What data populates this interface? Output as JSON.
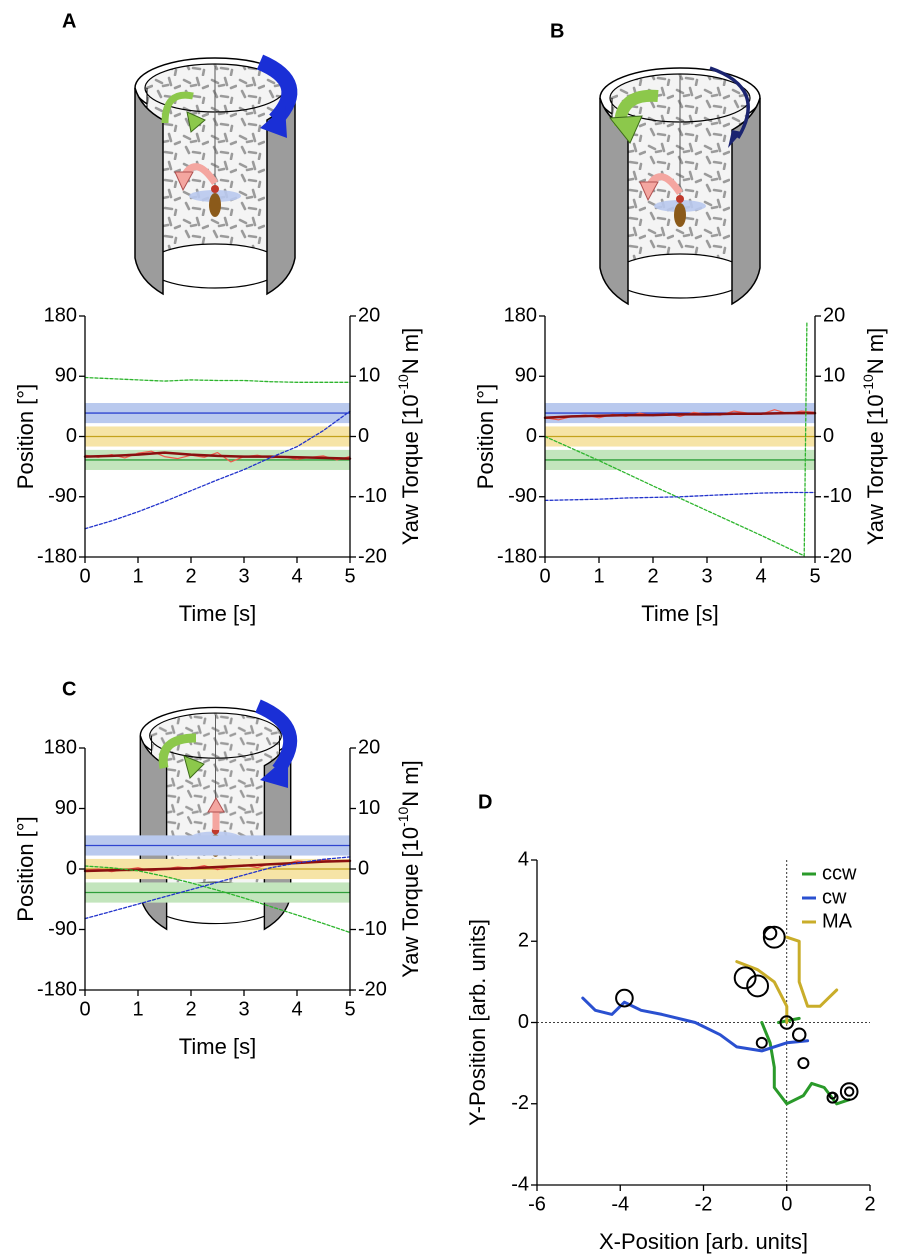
{
  "chart_data": [
    {
      "type": "line",
      "label": "A",
      "xlabel": "Time [s]",
      "ylabel": "Position [°]",
      "y2label": [
        "Yaw Torque [10",
        "-10",
        "N m]"
      ],
      "xlim": [
        0,
        5
      ],
      "xticks": [
        0,
        1,
        2,
        3,
        4,
        5
      ],
      "ylim": [
        -180,
        180
      ],
      "yticks": [
        -180,
        -90,
        0,
        90,
        180
      ],
      "y2lim": [
        -20,
        20
      ],
      "y2ticks": [
        -20,
        -10,
        0,
        10,
        20
      ],
      "bands": [
        {
          "color": "#b9c9ee",
          "line_color": "#2f45d0",
          "from": 20,
          "to": 50,
          "line": 35
        },
        {
          "color": "#f6e4a6",
          "line_color": "#c4a21c",
          "from": -15,
          "to": 15,
          "line": 0
        },
        {
          "color": "#c3e5bd",
          "line_color": "#2e9e3a",
          "from": -50,
          "to": -20,
          "line": -35
        }
      ],
      "series": [
        {
          "color": "#f0594c",
          "width": 1.2,
          "x": [
            0,
            0.25,
            0.5,
            0.75,
            1,
            1.25,
            1.5,
            1.75,
            2,
            2.25,
            2.5,
            2.75,
            3,
            3.25,
            3.5,
            3.75,
            4,
            4.25,
            4.5,
            4.75,
            5
          ],
          "values": [
            -28,
            -31,
            -27,
            -32,
            -25,
            -22,
            -30,
            -33,
            -28,
            -31,
            -24,
            -38,
            -30,
            -28,
            -32,
            -30,
            -34,
            -31,
            -29,
            -35,
            -30
          ]
        },
        {
          "color": "#8a1010",
          "width": 2.5,
          "x": [
            0,
            0.5,
            1,
            1.5,
            2,
            2.5,
            3,
            3.5,
            4,
            4.5,
            5
          ],
          "values": [
            -30,
            -29,
            -27,
            -24,
            -27,
            -29,
            -30,
            -30,
            -31,
            -32,
            -33
          ]
        },
        {
          "color": "#2db52d",
          "width": 1.3,
          "dashed": true,
          "axis": "y2",
          "x": [
            0,
            0.5,
            1,
            1.5,
            2,
            2.5,
            3,
            3.5,
            4,
            4.5,
            5
          ],
          "values": [
            9.8,
            9.6,
            9.4,
            9.2,
            9.4,
            9.3,
            9.3,
            9.1,
            9.0,
            9.0,
            9.0
          ]
        },
        {
          "color": "#2233cc",
          "width": 1.3,
          "dashed": true,
          "axis": "y2",
          "x": [
            0,
            0.5,
            1,
            1.5,
            2,
            2.5,
            3,
            3.5,
            4,
            4.5,
            5
          ],
          "values": [
            -15.3,
            -14,
            -12.5,
            -10.8,
            -9,
            -7.2,
            -5.5,
            -3.5,
            -1.7,
            1,
            4.2
          ]
        }
      ]
    },
    {
      "type": "line",
      "label": "B",
      "xlabel": "Time [s]",
      "ylabel": "Position [°]",
      "y2label": [
        "Yaw Torque [10",
        "-10",
        "N m]"
      ],
      "xlim": [
        0,
        5
      ],
      "xticks": [
        0,
        1,
        2,
        3,
        4,
        5
      ],
      "ylim": [
        -180,
        180
      ],
      "yticks": [
        -180,
        -90,
        0,
        90,
        180
      ],
      "y2lim": [
        -20,
        20
      ],
      "y2ticks": [
        -20,
        -10,
        0,
        10,
        20
      ],
      "bands": [
        {
          "color": "#b9c9ee",
          "line_color": "#2f45d0",
          "from": 20,
          "to": 50,
          "line": 35
        },
        {
          "color": "#f6e4a6",
          "line_color": "#c4a21c",
          "from": -15,
          "to": 15,
          "line": 0
        },
        {
          "color": "#c3e5bd",
          "line_color": "#2e9e3a",
          "from": -50,
          "to": -20,
          "line": -35
        }
      ],
      "series": [
        {
          "color": "#f0594c",
          "width": 1.2,
          "x": [
            0,
            0.25,
            0.5,
            0.75,
            1,
            1.25,
            1.5,
            1.75,
            2,
            2.25,
            2.5,
            2.75,
            3,
            3.25,
            3.5,
            3.75,
            4,
            4.25,
            4.5,
            4.75,
            5
          ],
          "values": [
            28,
            25,
            30,
            32,
            28,
            33,
            30,
            35,
            31,
            34,
            30,
            36,
            33,
            32,
            38,
            35,
            33,
            40,
            34,
            38,
            36
          ]
        },
        {
          "color": "#8a1010",
          "width": 2.5,
          "x": [
            0,
            0.5,
            1,
            1.5,
            2,
            2.5,
            3,
            3.5,
            4,
            4.5,
            5
          ],
          "values": [
            28,
            30,
            31,
            32,
            32,
            33,
            33,
            34,
            34,
            35,
            35
          ]
        },
        {
          "color": "#2db52d",
          "width": 1.3,
          "dashed": true,
          "axis": "y2",
          "x": [
            0,
            1,
            2,
            3,
            4,
            4.8,
            4.85
          ],
          "values": [
            0,
            -4,
            -8.2,
            -12.3,
            -16.4,
            -19.8,
            19
          ]
        },
        {
          "color": "#2233cc",
          "width": 1.3,
          "dashed": true,
          "axis": "y2",
          "x": [
            0,
            0.5,
            1,
            1.5,
            2,
            2.5,
            3,
            3.5,
            4,
            4.5,
            5
          ],
          "values": [
            -10.6,
            -10.5,
            -10.4,
            -10.2,
            -10.1,
            -10,
            -9.8,
            -9.6,
            -9.4,
            -9.3,
            -9.3
          ]
        }
      ]
    },
    {
      "type": "line",
      "label": "C",
      "xlabel": "Time [s]",
      "ylabel": "Position [°]",
      "y2label": [
        "Yaw Torque [10",
        "-10",
        "N m]"
      ],
      "xlim": [
        0,
        5
      ],
      "xticks": [
        0,
        1,
        2,
        3,
        4,
        5
      ],
      "ylim": [
        -180,
        180
      ],
      "yticks": [
        -180,
        -90,
        0,
        90,
        180
      ],
      "y2lim": [
        -20,
        20
      ],
      "y2ticks": [
        -20,
        -10,
        0,
        10,
        20
      ],
      "bands": [
        {
          "color": "#b9c9ee",
          "line_color": "#2f45d0",
          "from": 20,
          "to": 50,
          "line": 35
        },
        {
          "color": "#f6e4a6",
          "line_color": "#c4a21c",
          "from": -15,
          "to": 15,
          "line": 0
        },
        {
          "color": "#c3e5bd",
          "line_color": "#2e9e3a",
          "from": -50,
          "to": -20,
          "line": -35
        }
      ],
      "series": [
        {
          "color": "#f0594c",
          "width": 1.2,
          "x": [
            0,
            0.25,
            0.5,
            0.75,
            1,
            1.25,
            1.5,
            1.75,
            2,
            2.25,
            2.5,
            2.75,
            3,
            3.25,
            3.5,
            3.75,
            4,
            4.25,
            4.5,
            4.75,
            5
          ],
          "values": [
            -2,
            0,
            -4,
            -1,
            2,
            -3,
            0,
            3,
            1,
            5,
            -1,
            4,
            6,
            2,
            8,
            7,
            12,
            10,
            14,
            11,
            13
          ]
        },
        {
          "color": "#8a1010",
          "width": 2.5,
          "x": [
            0,
            0.5,
            1,
            1.5,
            2,
            2.5,
            3,
            3.5,
            4,
            4.5,
            5
          ],
          "values": [
            -3,
            -2,
            -1,
            0,
            1,
            3,
            5,
            7,
            9,
            11,
            12
          ]
        },
        {
          "color": "#2db52d",
          "width": 1.3,
          "dashed": true,
          "axis": "y2",
          "x": [
            0,
            0.5,
            1,
            1.5,
            2,
            2.5,
            3,
            3.5,
            4,
            4.5,
            5
          ],
          "values": [
            0.5,
            0.2,
            -0.3,
            -1.2,
            -2.3,
            -3.5,
            -4.8,
            -6.2,
            -7.6,
            -9,
            -10.5
          ]
        },
        {
          "color": "#2233cc",
          "width": 1.3,
          "dashed": true,
          "axis": "y2",
          "x": [
            0,
            0.5,
            1,
            1.5,
            2,
            2.5,
            3,
            3.5,
            4,
            4.5,
            5
          ],
          "values": [
            -8.2,
            -7,
            -5.8,
            -4.6,
            -3.4,
            -2.2,
            -1,
            0.2,
            1,
            1.6,
            2
          ]
        }
      ]
    },
    {
      "type": "trajectory",
      "label": "D",
      "xlabel": "X-Position [arb. units]",
      "ylabel": "Y-Position [arb. units]",
      "xlim": [
        -6,
        2
      ],
      "xticks": [
        -6,
        -4,
        -2,
        0,
        2
      ],
      "ylim": [
        -4,
        4
      ],
      "yticks": [
        -4,
        -2,
        0,
        2,
        4
      ],
      "legend": "upper right",
      "series": [
        {
          "name": "ccw",
          "color": "#2a9a2a",
          "x": [
            -0.6,
            -0.4,
            -0.3,
            -0.3,
            0,
            0.4,
            0.6,
            0.9,
            1.2,
            1.5,
            null,
            -0.2,
            0.3
          ],
          "values": [
            0,
            -0.5,
            -1.1,
            -1.6,
            -2,
            -1.8,
            -1.5,
            -1.6,
            -2,
            -1.9,
            null,
            0,
            0.1
          ]
        },
        {
          "name": "cw",
          "color": "#2a50d0",
          "x": [
            -4.9,
            -4.6,
            -4.2,
            -3.9,
            -3.5,
            -3,
            -2.2,
            -1.6,
            -1.2,
            -0.6,
            0,
            0.5
          ],
          "values": [
            0.6,
            0.3,
            0.2,
            0.5,
            0.3,
            0.2,
            0,
            -0.3,
            -0.6,
            -0.7,
            -0.5,
            -0.45
          ]
        },
        {
          "name": "MA",
          "color": "#c9ad2a",
          "x": [
            -1.2,
            -0.7,
            -0.3,
            0,
            0,
            null,
            0,
            0.3,
            0.3,
            0.5,
            0.8,
            1,
            1.2
          ],
          "values": [
            1.5,
            1.3,
            1,
            0.4,
            0,
            null,
            2.1,
            2,
            1,
            0.4,
            0.4,
            0.6,
            0.8
          ]
        }
      ],
      "loops": {
        "color": "#000000",
        "x": [
          -3.9,
          -0.3,
          -0.4,
          -1,
          -0.7,
          -0.6,
          0.4,
          0.3,
          0,
          1.1,
          1.1,
          1.5,
          1.5
        ],
        "values": [
          0.6,
          2.1,
          2.2,
          1.1,
          0.9,
          -0.5,
          -1,
          -0.3,
          0,
          -1.85,
          -1.8,
          -1.7,
          -1.7
        ],
        "r": [
          0.2,
          0.25,
          0.15,
          0.25,
          0.25,
          0.12,
          0.12,
          0.15,
          0.15,
          0.12,
          0.07,
          0.2,
          0.1
        ]
      }
    }
  ]
}
